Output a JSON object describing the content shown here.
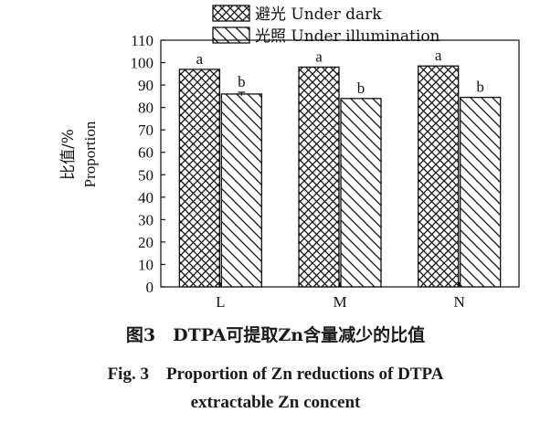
{
  "chart_data": {
    "type": "bar",
    "categories": [
      "L",
      "M",
      "N"
    ],
    "series": [
      {
        "name": "避光 Under dark",
        "pattern": "crosshatch",
        "values": [
          97,
          98,
          98.5
        ],
        "labels": [
          "a",
          "a",
          "a"
        ]
      },
      {
        "name": "光照 Under illumination",
        "pattern": "diagonal",
        "values": [
          86,
          84,
          84.5
        ],
        "errors": [
          0.8,
          0,
          0
        ],
        "labels": [
          "b",
          "b",
          "b"
        ]
      }
    ],
    "ylabel_cn": "比值/%",
    "ylabel_en": "Proportion",
    "ylim": [
      0,
      110
    ],
    "yticks": [
      0,
      10,
      20,
      30,
      40,
      50,
      60,
      70,
      80,
      90,
      100,
      110
    ],
    "legend_position": "top-center"
  },
  "caption": {
    "cn": "图3　DTPA可提取Zn含量减少的比值",
    "en_line1": "Fig. 3　Proportion of Zn reductions of DTPA",
    "en_line2": "extractable Zn concent"
  }
}
